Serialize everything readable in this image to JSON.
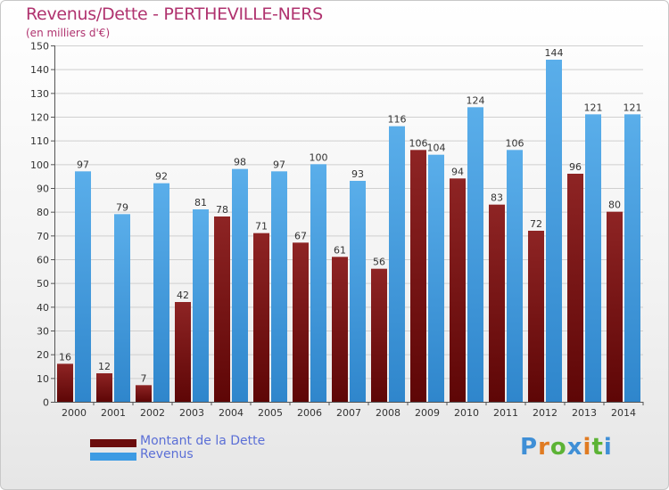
{
  "title": "Revenus/Dette - PERTHEVILLE-NERS",
  "subtitle": "(en milliers d'€)",
  "logo": {
    "text": "Proxiti",
    "letter_colors": [
      "#3f8fd6",
      "#e07b22",
      "#5cb335",
      "#3f8fd6",
      "#e07b22",
      "#5cb335",
      "#3f8fd6"
    ]
  },
  "chart_data": {
    "type": "bar",
    "categories": [
      "2000",
      "2001",
      "2002",
      "2003",
      "2004",
      "2005",
      "2006",
      "2007",
      "2008",
      "2009",
      "2010",
      "2011",
      "2012",
      "2013",
      "2014"
    ],
    "series": [
      {
        "name": "Montant de la Dette",
        "color": "#7b1414",
        "values": [
          16,
          12,
          7,
          42,
          78,
          71,
          67,
          61,
          56,
          106,
          94,
          83,
          72,
          96,
          80
        ]
      },
      {
        "name": "Revenus",
        "color": "#3d9be3",
        "values": [
          97,
          79,
          92,
          81,
          98,
          97,
          100,
          93,
          116,
          104,
          124,
          106,
          144,
          121,
          121
        ]
      }
    ],
    "ylim": [
      0,
      150
    ],
    "yticks": [
      0,
      10,
      20,
      30,
      40,
      50,
      60,
      70,
      80,
      90,
      100,
      110,
      120,
      130,
      140,
      150
    ],
    "grid": true,
    "legend_position": "bottom-left"
  }
}
